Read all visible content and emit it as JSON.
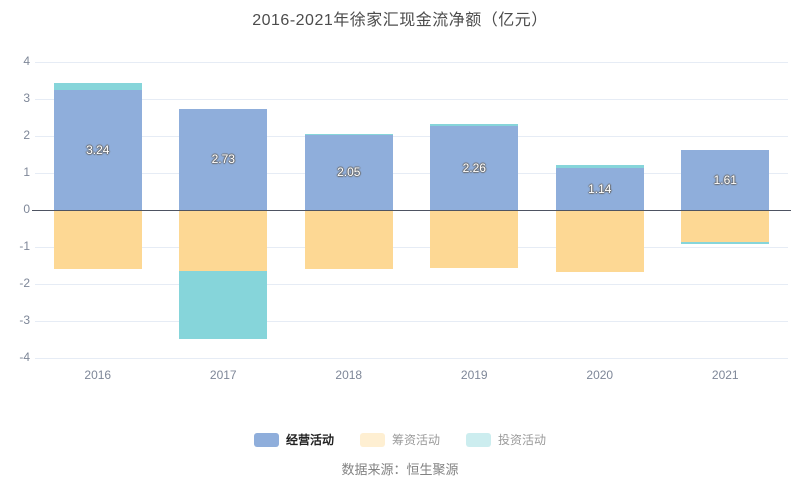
{
  "title": "2016-2021年徐家汇现金流净额（亿元）",
  "source_label": "数据来源：恒生聚源",
  "y_axis": {
    "ticks": [
      4,
      3,
      2,
      1,
      0,
      -1,
      -2,
      -3,
      -4
    ]
  },
  "legend": {
    "items": [
      {
        "key": "operating",
        "label": "经营活动",
        "emphasized": true
      },
      {
        "key": "financing",
        "label": "筹资活动",
        "emphasized": false
      },
      {
        "key": "investing",
        "label": "投资活动",
        "emphasized": false
      }
    ]
  },
  "colors": {
    "operating": "#8FAEDB",
    "financing": "#FDD894",
    "investing": "#86D5DA",
    "grid_line": "#E6ECF5",
    "zero_line": "#4E5462",
    "axis_text": "#7E8798",
    "title_text": "#4C4C4C",
    "legend_muted_text": "#9B9B9B",
    "legend_emphasis_text": "#222222",
    "source_text": "#828282",
    "value_label_text": "#FFFFFF"
  },
  "chart_data": {
    "type": "bar",
    "stacked": true,
    "title": "2016-2021年徐家汇现金流净额（亿元）",
    "categories": [
      "2016",
      "2017",
      "2018",
      "2019",
      "2020",
      "2021"
    ],
    "series": [
      {
        "key": "operating",
        "name": "经营活动",
        "values": [
          3.24,
          2.73,
          2.05,
          2.26,
          1.14,
          1.61
        ],
        "data_labels": [
          "3.24",
          "2.73",
          "2.05",
          "2.26",
          "1.14",
          "1.61"
        ]
      },
      {
        "key": "financing",
        "name": "筹资活动",
        "values": [
          -1.6,
          -1.65,
          -1.6,
          -1.58,
          -1.68,
          -0.87
        ]
      },
      {
        "key": "investing",
        "name": "投资活动",
        "values": [
          0.2,
          -1.84,
          0.01,
          0.06,
          0.07,
          -0.06
        ]
      }
    ],
    "ylim": [
      -4,
      4
    ],
    "ytick_interval": 1,
    "xlabel": "",
    "ylabel": "",
    "grid": true,
    "legend_position": "bottom"
  }
}
